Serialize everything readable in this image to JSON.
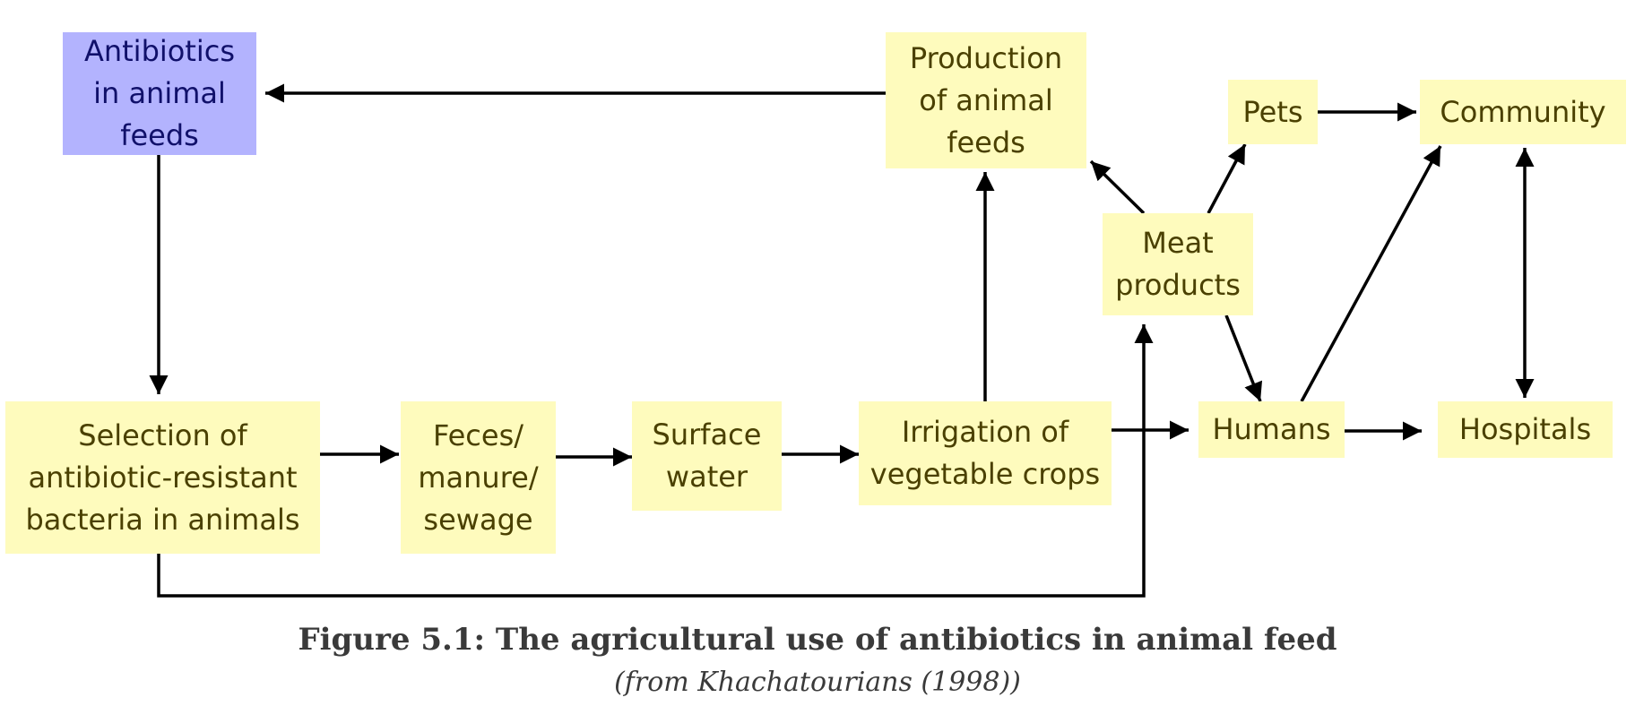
{
  "diagram": {
    "nodes": {
      "antibiotics_feeds": "Antibiotics\nin animal\nfeeds",
      "production_feeds": "Production\nof animal\nfeeds",
      "pets": "Pets",
      "community": "Community",
      "meat_products": "Meat\nproducts",
      "selection": "Selection of\nantibiotic-resistant\nbacteria in animals",
      "feces": "Feces/\nmanure/\nsewage",
      "surface_water": "Surface\nwater",
      "irrigation": "Irrigation of\nvegetable crops",
      "humans": "Humans",
      "hospitals": "Hospitals"
    }
  },
  "caption": {
    "title": "Figure 5.1: The agricultural use of antibiotics in animal feed",
    "source": "(from Khachatourians (1998))"
  },
  "colors": {
    "node_fill": "#fefbbd",
    "highlight_fill": "#b3b3fe",
    "arrow": "#000000"
  }
}
